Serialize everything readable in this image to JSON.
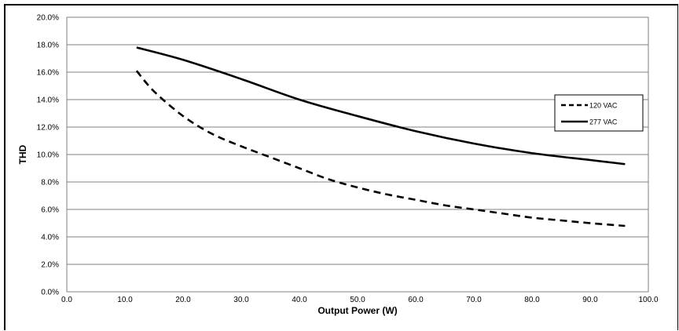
{
  "chart_data": {
    "type": "line",
    "title": "",
    "xlabel": "Output Power (W)",
    "ylabel": "THD",
    "xlim": [
      0,
      100
    ],
    "ylim": [
      0,
      20
    ],
    "x_ticks": [
      "0.0",
      "10.0",
      "20.0",
      "30.0",
      "40.0",
      "50.0",
      "60.0",
      "70.0",
      "80.0",
      "90.0",
      "100.0"
    ],
    "y_ticks": [
      "0.0%",
      "2.0%",
      "4.0%",
      "6.0%",
      "8.0%",
      "10.0%",
      "12.0%",
      "14.0%",
      "16.0%",
      "18.0%",
      "20.0%"
    ],
    "grid": "horizontal",
    "legend_position": "right",
    "series": [
      {
        "name": "120 VAC",
        "style": "dashed",
        "color": "#000000",
        "x": [
          12,
          15,
          20,
          25,
          30,
          35,
          40,
          45,
          50,
          55,
          60,
          65,
          70,
          75,
          80,
          85,
          90,
          96
        ],
        "y": [
          16.1,
          14.6,
          12.8,
          11.5,
          10.6,
          9.8,
          9.0,
          8.2,
          7.6,
          7.1,
          6.7,
          6.3,
          6.0,
          5.7,
          5.4,
          5.2,
          5.0,
          4.8
        ]
      },
      {
        "name": "277 VAC",
        "style": "solid",
        "color": "#000000",
        "x": [
          12,
          20,
          30,
          40,
          50,
          60,
          70,
          80,
          90,
          96
        ],
        "y": [
          17.8,
          16.9,
          15.5,
          14.0,
          12.8,
          11.7,
          10.8,
          10.1,
          9.6,
          9.3
        ]
      }
    ]
  }
}
